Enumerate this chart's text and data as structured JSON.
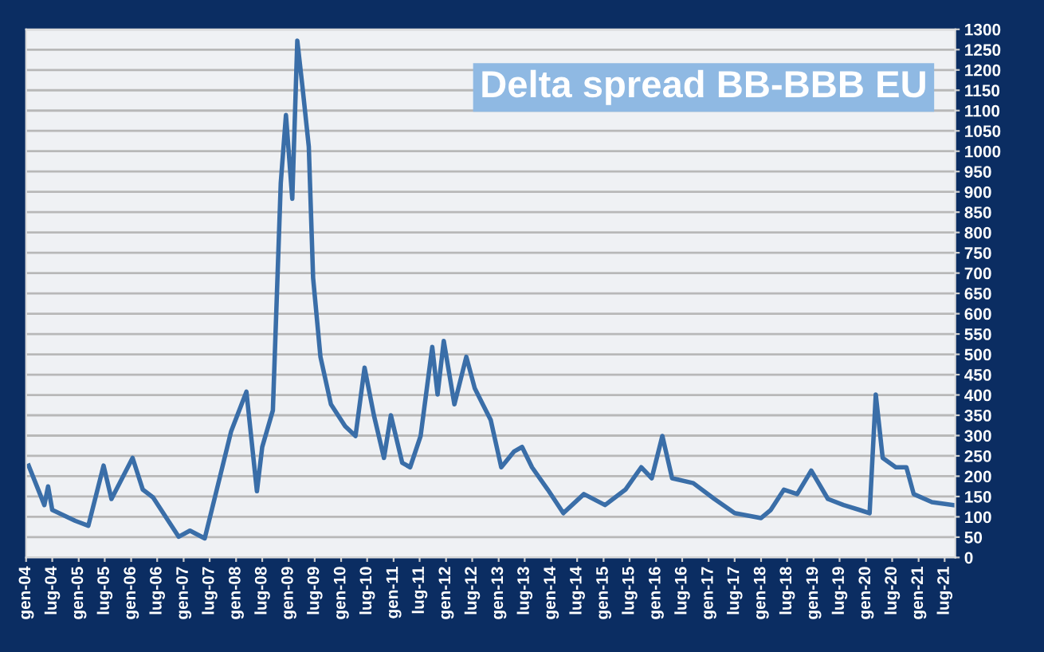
{
  "chart_data": {
    "type": "line",
    "title": "Delta spread BB-BBB EU",
    "x": [
      "2004-01-19",
      "2004-05-07",
      "2004-06-02",
      "2004-07-01",
      "2004-12-09",
      "2005-03-09",
      "2005-06-23",
      "2005-08-17",
      "2006-01-11",
      "2006-03-23",
      "2006-06-02",
      "2006-11-28",
      "2007-02-14",
      "2007-05-28",
      "2007-09-16",
      "2007-11-28",
      "2008-03-13",
      "2008-05-25",
      "2008-07-01",
      "2008-09-13",
      "2008-11-07",
      "2008-12-13",
      "2009-01-26",
      "2009-03-02",
      "2009-04-08",
      "2009-05-21",
      "2009-06-20",
      "2009-08-10",
      "2009-10-22",
      "2010-01-29",
      "2010-04-11",
      "2010-06-13",
      "2010-08-17",
      "2010-10-26",
      "2010-12-13",
      "2011-03-02",
      "2011-04-26",
      "2011-07-08",
      "2011-09-27",
      "2011-11-03",
      "2011-12-16",
      "2012-02-28",
      "2012-05-21",
      "2012-07-19",
      "2012-11-07",
      "2013-01-19",
      "2013-04-19",
      "2013-06-13",
      "2013-08-21",
      "2013-12-09",
      "2014-03-27",
      "2014-08-17",
      "2015-01-11",
      "2015-06-02",
      "2015-09-20",
      "2015-12-02",
      "2016-02-14",
      "2016-04-22",
      "2016-09-16",
      "2017-02-10",
      "2017-07-01",
      "2018-01-01",
      "2018-03-09",
      "2018-06-09",
      "2018-09-09",
      "2018-12-16",
      "2019-04-11",
      "2019-07-29",
      "2019-11-17",
      "2020-01-26",
      "2020-03-09",
      "2020-04-26",
      "2020-07-26",
      "2020-10-08",
      "2020-11-28",
      "2021-04-04",
      "2021-08-28"
    ],
    "series": [
      {
        "color": "#3a6ea8",
        "values": [
          226,
          129,
          175,
          117,
          90,
          78,
          226,
          144,
          245,
          167,
          148,
          51,
          66,
          47,
          206,
          311,
          408,
          163,
          272,
          362,
          922,
          1089,
          883,
          1272,
          1155,
          1011,
          688,
          494,
          377,
          323,
          299,
          467,
          350,
          245,
          350,
          233,
          222,
          299,
          518,
          401,
          533,
          377,
          494,
          416,
          338,
          222,
          261,
          272,
          222,
          167,
          109,
          156,
          129,
          167,
          222,
          195,
          299,
          195,
          183,
          144,
          109,
          97,
          117,
          167,
          156,
          214,
          144,
          129,
          117,
          109,
          401,
          245,
          222,
          222,
          156,
          136,
          129
        ]
      }
    ],
    "xlim": [
      "2004-01-01",
      "2021-09-13"
    ],
    "ylim": [
      0,
      1300
    ],
    "xticks": [
      {
        "value": "2004-01-01",
        "label": "gen-04"
      },
      {
        "value": "2004-07-01",
        "label": "lug-04"
      },
      {
        "value": "2005-01-01",
        "label": "gen-05"
      },
      {
        "value": "2005-07-01",
        "label": "lug-05"
      },
      {
        "value": "2006-01-01",
        "label": "gen-06"
      },
      {
        "value": "2006-07-01",
        "label": "lug-06"
      },
      {
        "value": "2007-01-01",
        "label": "gen-07"
      },
      {
        "value": "2007-07-01",
        "label": "lug-07"
      },
      {
        "value": "2008-01-01",
        "label": "gen-08"
      },
      {
        "value": "2008-07-01",
        "label": "lug-08"
      },
      {
        "value": "2009-01-01",
        "label": "gen-09"
      },
      {
        "value": "2009-07-01",
        "label": "lug-09"
      },
      {
        "value": "2010-01-01",
        "label": "gen-10"
      },
      {
        "value": "2010-07-01",
        "label": "lug-10"
      },
      {
        "value": "2011-01-01",
        "label": "gen-11"
      },
      {
        "value": "2011-07-01",
        "label": "lug-11"
      },
      {
        "value": "2012-01-01",
        "label": "gen-12"
      },
      {
        "value": "2012-07-01",
        "label": "lug-12"
      },
      {
        "value": "2013-01-01",
        "label": "gen-13"
      },
      {
        "value": "2013-07-01",
        "label": "lug-13"
      },
      {
        "value": "2014-01-01",
        "label": "gen-14"
      },
      {
        "value": "2014-07-01",
        "label": "lug-14"
      },
      {
        "value": "2015-01-01",
        "label": "gen-15"
      },
      {
        "value": "2015-07-01",
        "label": "lug-15"
      },
      {
        "value": "2016-01-01",
        "label": "gen-16"
      },
      {
        "value": "2016-07-01",
        "label": "lug-16"
      },
      {
        "value": "2017-01-01",
        "label": "gen-17"
      },
      {
        "value": "2017-07-01",
        "label": "lug-17"
      },
      {
        "value": "2018-01-01",
        "label": "gen-18"
      },
      {
        "value": "2018-07-01",
        "label": "lug-18"
      },
      {
        "value": "2019-01-01",
        "label": "gen-19"
      },
      {
        "value": "2019-07-01",
        "label": "lug-19"
      },
      {
        "value": "2020-01-01",
        "label": "gen-20"
      },
      {
        "value": "2020-07-01",
        "label": "lug-20"
      },
      {
        "value": "2021-01-01",
        "label": "gen-21"
      },
      {
        "value": "2021-07-01",
        "label": "lug-21"
      }
    ],
    "yticks": [
      0,
      50,
      100,
      150,
      200,
      250,
      300,
      350,
      400,
      450,
      500,
      550,
      600,
      650,
      700,
      750,
      800,
      850,
      900,
      950,
      1000,
      1050,
      1100,
      1150,
      1200,
      1250,
      1300
    ],
    "grid": "y",
    "legend": false,
    "marker": "none",
    "line_style": "solid"
  }
}
